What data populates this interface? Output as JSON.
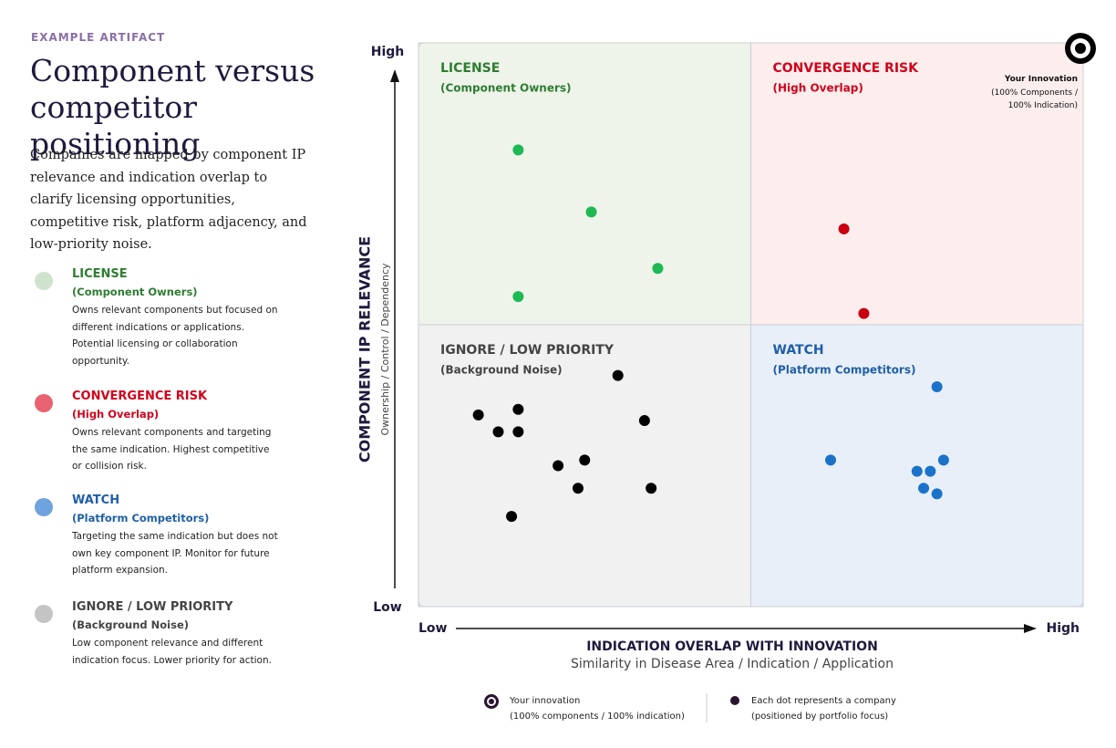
{
  "eyebrow": "EXAMPLE ARTIFACT",
  "title": "Component versus competitor positioning",
  "description": "Companies are mapped by component IP relevance and indication overlap to clarify licensing opportunities, competitive risk, platform adjacency, and low-priority noise.",
  "chart_data": {
    "type": "scatter",
    "xlabel": "INDICATION OVERLAP WITH INNOVATION",
    "xsublabel": "Similarity in Disease Area / Indication / Application",
    "ylabel": "COMPONENT IP RELEVANCE",
    "ysublabel": "Ownership / Control / Dependency",
    "xlim": [
      0,
      100
    ],
    "ylim": [
      0,
      100
    ],
    "xticks": [
      {
        "value": 0,
        "label": "Low"
      },
      {
        "value": 100,
        "label": "High"
      }
    ],
    "yticks": [
      {
        "value": 0,
        "label": "Low"
      },
      {
        "value": 100,
        "label": "High"
      }
    ],
    "series": [
      {
        "name": "LICENSE",
        "subtitle": "(Component Owners)",
        "description": "Owns relevant components but focused on different indications or applications. Potential licensing or collaboration opportunity.",
        "color": "#1db954",
        "x": [
          15,
          26,
          36,
          15
        ],
        "values": [
          81,
          70,
          60,
          55
        ]
      },
      {
        "name": "CONVERGENCE RISK",
        "subtitle": "(High Overlap)",
        "description": "Owns relevant components and targeting the same indication. Highest competitive or collision risk.",
        "color": "#c8000f",
        "x": [
          64,
          67
        ],
        "values": [
          67,
          52
        ]
      },
      {
        "name": "WATCH",
        "subtitle": "(Platform Competitors)",
        "description": "Targeting the same indication but does not own key component IP. Monitor for future platform expansion.",
        "color": "#1a73c9",
        "x": [
          78,
          62,
          75,
          77,
          79,
          76,
          78
        ],
        "values": [
          39,
          26,
          24,
          24,
          26,
          21,
          20
        ]
      },
      {
        "name": "IGNORE / LOW PRIORITY",
        "subtitle": "(Background Noise)",
        "description": "Low component relevance and different indication focus. Lower priority for action.",
        "color": "#000000",
        "x": [
          30,
          9,
          15,
          12,
          15,
          34,
          21,
          25,
          24,
          35,
          14
        ],
        "values": [
          41,
          34,
          35,
          31,
          31,
          33,
          25,
          26,
          21,
          21,
          16
        ]
      }
    ],
    "highlight": {
      "name": "Your Innovation",
      "label": "(100% Components / 100% Indication)",
      "x": 100,
      "y": 100
    }
  },
  "footnotes": [
    {
      "title": "Your innovation",
      "subtitle": "(100% components / 100% indication)"
    },
    {
      "title": "Each dot represents a company",
      "subtitle": "(positioned by portfolio focus)"
    }
  ]
}
